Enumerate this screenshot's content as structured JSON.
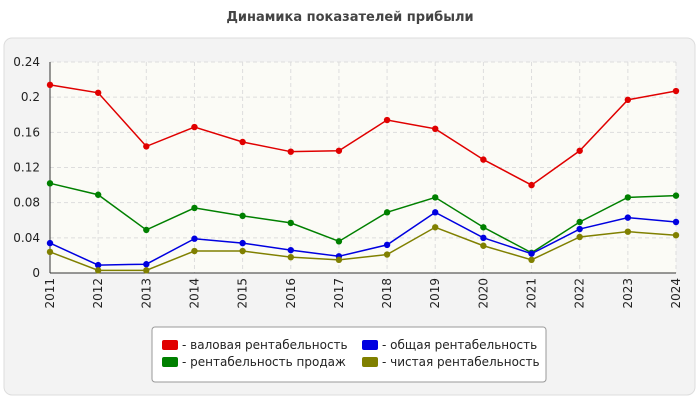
{
  "chart_data": {
    "type": "line",
    "title": "Динамика показателей прибыли",
    "categories": [
      "2011",
      "2012",
      "2013",
      "2014",
      "2015",
      "2016",
      "2017",
      "2018",
      "2019",
      "2020",
      "2021",
      "2022",
      "2023",
      "2024"
    ],
    "series": [
      {
        "name": "- валовая рентабельность",
        "color": "#e00000",
        "values": [
          0.214,
          0.205,
          0.144,
          0.166,
          0.149,
          0.138,
          0.139,
          0.174,
          0.164,
          0.129,
          0.1,
          0.139,
          0.197,
          0.207
        ]
      },
      {
        "name": "- рентабельность продаж",
        "color": "#008000",
        "values": [
          0.102,
          0.089,
          0.049,
          0.074,
          0.065,
          0.057,
          0.036,
          0.069,
          0.086,
          0.052,
          0.023,
          0.058,
          0.086,
          0.088
        ]
      },
      {
        "name": "- общая рентабельность",
        "color": "#0000e0",
        "values": [
          0.034,
          0.009,
          0.01,
          0.039,
          0.034,
          0.026,
          0.019,
          0.032,
          0.069,
          0.04,
          0.022,
          0.05,
          0.063,
          0.058
        ]
      },
      {
        "name": "- чистая рентабельность",
        "color": "#808000",
        "values": [
          0.024,
          0.003,
          0.003,
          0.025,
          0.025,
          0.018,
          0.015,
          0.021,
          0.052,
          0.031,
          0.015,
          0.041,
          0.047,
          0.043
        ]
      }
    ],
    "ylim": [
      0,
      0.24
    ],
    "yticks": [
      0,
      0.04,
      0.08,
      0.12,
      0.16,
      0.2,
      0.24
    ],
    "grid": true
  }
}
